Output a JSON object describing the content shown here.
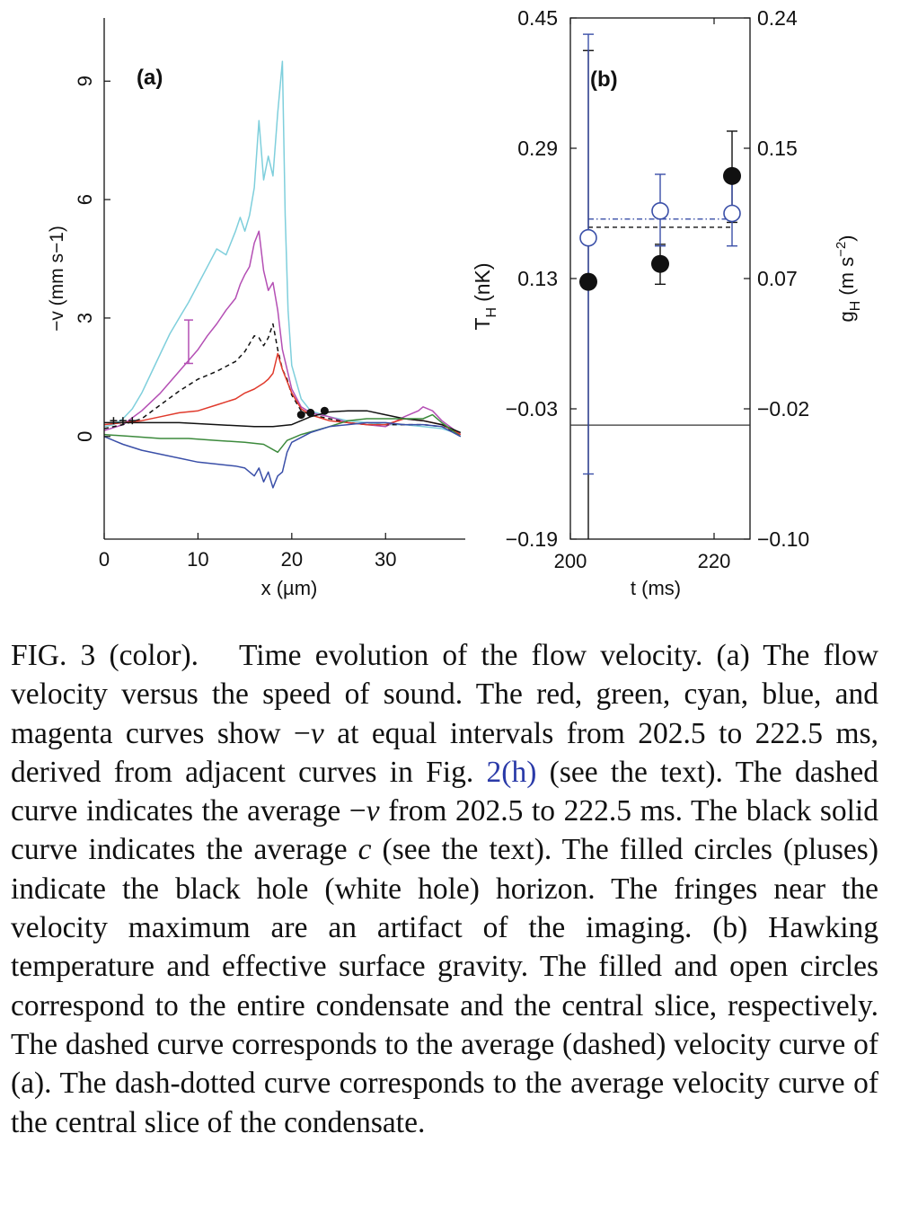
{
  "chart_data": [
    {
      "panel": "(a)",
      "type": "line",
      "xlabel": "x (µm)",
      "ylabel": "−v (mm s−1)",
      "xlim": [
        0,
        38.5
      ],
      "ylim": [
        -2.6,
        10.6
      ],
      "xticks": [
        "0",
        "10",
        "20",
        "30"
      ],
      "yticks": [
        "0",
        "3",
        "6",
        "9"
      ],
      "series": [
        {
          "name": "cyan",
          "color": "#7fcfdc",
          "points": [
            [
              0,
              0.25
            ],
            [
              1,
              0.3
            ],
            [
              2,
              0.45
            ],
            [
              3,
              0.7
            ],
            [
              4,
              1.1
            ],
            [
              5,
              1.6
            ],
            [
              6,
              2.1
            ],
            [
              7,
              2.6
            ],
            [
              8,
              3.0
            ],
            [
              9,
              3.4
            ],
            [
              10,
              3.85
            ],
            [
              11,
              4.3
            ],
            [
              12,
              4.75
            ],
            [
              13,
              4.6
            ],
            [
              14,
              5.2
            ],
            [
              14.5,
              5.55
            ],
            [
              15,
              5.2
            ],
            [
              15.5,
              5.6
            ],
            [
              16,
              6.3
            ],
            [
              16.5,
              8.0
            ],
            [
              17,
              6.5
            ],
            [
              17.5,
              7.1
            ],
            [
              18,
              6.6
            ],
            [
              18.5,
              8.2
            ],
            [
              19,
              9.5
            ],
            [
              19.3,
              5.6
            ],
            [
              19.6,
              3.2
            ],
            [
              20,
              1.8
            ],
            [
              21,
              0.95
            ],
            [
              22,
              0.65
            ],
            [
              24,
              0.5
            ],
            [
              26,
              0.4
            ],
            [
              28,
              0.35
            ],
            [
              30,
              0.3
            ],
            [
              32,
              0.3
            ],
            [
              34,
              0.25
            ],
            [
              36,
              0.2
            ],
            [
              38,
              0.05
            ]
          ]
        },
        {
          "name": "magenta",
          "color": "#b44fb4",
          "points": [
            [
              0,
              0.15
            ],
            [
              2,
              0.3
            ],
            [
              4,
              0.65
            ],
            [
              6,
              1.1
            ],
            [
              8,
              1.65
            ],
            [
              10,
              2.2
            ],
            [
              11,
              2.55
            ],
            [
              12,
              2.85
            ],
            [
              13,
              3.2
            ],
            [
              14,
              3.5
            ],
            [
              14.5,
              3.85
            ],
            [
              15,
              4.1
            ],
            [
              15.5,
              4.3
            ],
            [
              16,
              4.9
            ],
            [
              16.5,
              5.2
            ],
            [
              17,
              4.2
            ],
            [
              17.5,
              3.7
            ],
            [
              18,
              3.9
            ],
            [
              18.5,
              3.2
            ],
            [
              19,
              2.2
            ],
            [
              20,
              1.2
            ],
            [
              21,
              0.75
            ],
            [
              22,
              0.6
            ],
            [
              24,
              0.5
            ],
            [
              26,
              0.35
            ],
            [
              28,
              0.3
            ],
            [
              30,
              0.25
            ],
            [
              32,
              0.5
            ],
            [
              33.5,
              0.65
            ],
            [
              34,
              0.75
            ],
            [
              35,
              0.65
            ],
            [
              36,
              0.4
            ],
            [
              38,
              0.05
            ]
          ]
        },
        {
          "name": "dashed-average",
          "color": "#111111",
          "dashed": true,
          "points": [
            [
              0,
              0.2
            ],
            [
              2,
              0.3
            ],
            [
              4,
              0.45
            ],
            [
              6,
              0.8
            ],
            [
              8,
              1.15
            ],
            [
              10,
              1.45
            ],
            [
              12,
              1.65
            ],
            [
              14,
              1.9
            ],
            [
              15,
              2.15
            ],
            [
              16,
              2.55
            ],
            [
              16.5,
              2.5
            ],
            [
              17,
              2.3
            ],
            [
              17.5,
              2.5
            ],
            [
              18,
              2.85
            ],
            [
              18.5,
              2.2
            ],
            [
              19,
              1.7
            ],
            [
              19.5,
              1.45
            ],
            [
              20,
              1.05
            ],
            [
              21,
              0.65
            ],
            [
              22,
              0.55
            ],
            [
              24,
              0.45
            ],
            [
              26,
              0.35
            ],
            [
              28,
              0.3
            ],
            [
              30,
              0.3
            ],
            [
              32,
              0.3
            ],
            [
              34,
              0.3
            ],
            [
              36,
              0.25
            ],
            [
              38,
              0.05
            ]
          ]
        },
        {
          "name": "red",
          "color": "#e03a2c",
          "points": [
            [
              0,
              0.3
            ],
            [
              2,
              0.35
            ],
            [
              4,
              0.4
            ],
            [
              6,
              0.5
            ],
            [
              8,
              0.6
            ],
            [
              10,
              0.65
            ],
            [
              12,
              0.8
            ],
            [
              14,
              0.95
            ],
            [
              15,
              1.1
            ],
            [
              16,
              1.2
            ],
            [
              17,
              1.35
            ],
            [
              17.5,
              1.45
            ],
            [
              18,
              1.6
            ],
            [
              18.5,
              2.1
            ],
            [
              19,
              1.7
            ],
            [
              19.5,
              1.4
            ],
            [
              20,
              1.1
            ],
            [
              21,
              0.7
            ],
            [
              22,
              0.55
            ],
            [
              24,
              0.4
            ],
            [
              26,
              0.35
            ],
            [
              28,
              0.3
            ],
            [
              30,
              0.3
            ],
            [
              32,
              0.45
            ],
            [
              34,
              0.4
            ],
            [
              36,
              0.3
            ],
            [
              38,
              0.05
            ]
          ]
        },
        {
          "name": "black-solid-average-c",
          "color": "#111111",
          "points": [
            [
              0,
              0.35
            ],
            [
              4,
              0.35
            ],
            [
              8,
              0.35
            ],
            [
              12,
              0.3
            ],
            [
              16,
              0.25
            ],
            [
              18,
              0.25
            ],
            [
              20,
              0.3
            ],
            [
              22,
              0.5
            ],
            [
              24,
              0.62
            ],
            [
              26,
              0.65
            ],
            [
              28,
              0.65
            ],
            [
              30,
              0.55
            ],
            [
              32,
              0.45
            ],
            [
              34,
              0.4
            ],
            [
              36,
              0.3
            ],
            [
              38,
              0.1
            ]
          ]
        },
        {
          "name": "green",
          "color": "#3c8a3c",
          "points": [
            [
              0,
              0.05
            ],
            [
              3,
              0.0
            ],
            [
              6,
              -0.05
            ],
            [
              9,
              -0.05
            ],
            [
              12,
              -0.1
            ],
            [
              15,
              -0.15
            ],
            [
              17,
              -0.2
            ],
            [
              18.5,
              -0.4
            ],
            [
              19.5,
              -0.1
            ],
            [
              21,
              0.05
            ],
            [
              24,
              0.25
            ],
            [
              26,
              0.4
            ],
            [
              28,
              0.45
            ],
            [
              30,
              0.45
            ],
            [
              32,
              0.45
            ],
            [
              34,
              0.45
            ],
            [
              35,
              0.55
            ],
            [
              36,
              0.35
            ],
            [
              38,
              0.0
            ]
          ]
        },
        {
          "name": "blue",
          "color": "#3a4fa8",
          "points": [
            [
              0,
              0.0
            ],
            [
              2,
              -0.2
            ],
            [
              4,
              -0.35
            ],
            [
              6,
              -0.45
            ],
            [
              8,
              -0.55
            ],
            [
              10,
              -0.65
            ],
            [
              12,
              -0.7
            ],
            [
              14,
              -0.75
            ],
            [
              15,
              -0.8
            ],
            [
              16,
              -1.0
            ],
            [
              16.5,
              -0.8
            ],
            [
              17,
              -1.15
            ],
            [
              17.5,
              -0.9
            ],
            [
              18,
              -1.3
            ],
            [
              18.5,
              -1.0
            ],
            [
              19,
              -0.9
            ],
            [
              19.5,
              -0.4
            ],
            [
              20,
              -0.15
            ],
            [
              22,
              0.1
            ],
            [
              24,
              0.25
            ],
            [
              26,
              0.3
            ],
            [
              28,
              0.35
            ],
            [
              30,
              0.35
            ],
            [
              32,
              0.3
            ],
            [
              34,
              0.3
            ],
            [
              36,
              0.25
            ],
            [
              38,
              0.0
            ]
          ]
        }
      ],
      "errorbar": {
        "x": 9,
        "y": 2.35,
        "low": 1.85,
        "high": 2.95,
        "color": "#b44fb4"
      },
      "filled_circles": [
        [
          21,
          0.55
        ],
        [
          22,
          0.6
        ],
        [
          23.5,
          0.65
        ]
      ],
      "plus_markers": [
        [
          1,
          0.4
        ],
        [
          2,
          0.4
        ],
        [
          3,
          0.4
        ]
      ]
    },
    {
      "panel": "(b)",
      "type": "scatter",
      "xlabel": "t (ms)",
      "ylabel_left": "T",
      "ylabel_left_sub": "H",
      "ylabel_left_unit": "(nK)",
      "ylabel_right": "g",
      "ylabel_right_sub": "H",
      "ylabel_right_unit": "(m s",
      "ylabel_right_exp": "−2",
      "ylabel_right_close": ")",
      "xlim": [
        200,
        225
      ],
      "ylim": [
        -0.19,
        0.45
      ],
      "y2lim": [
        -0.1,
        0.24
      ],
      "xticks": [
        "200",
        "220"
      ],
      "yticks_left": [
        "0.45",
        "0.29",
        "0.13",
        "−0.03",
        "−0.19"
      ],
      "yticks_right": [
        "0.24",
        "0.15",
        "0.07",
        "−0.02",
        "−0.10"
      ],
      "zero_line": -0.05,
      "filled": {
        "name": "entire condensate",
        "points": [
          {
            "t": 202.5,
            "T": 0.126,
            "low": -0.21,
            "high": 0.41
          },
          {
            "t": 212.5,
            "T": 0.148,
            "low": 0.123,
            "high": 0.172
          },
          {
            "t": 222.5,
            "T": 0.256,
            "low": 0.199,
            "high": 0.311
          }
        ]
      },
      "open": {
        "name": "central slice",
        "color": "#3a4fa8",
        "points": [
          {
            "t": 202.5,
            "T": 0.18,
            "low": -0.11,
            "high": 0.43
          },
          {
            "t": 212.5,
            "T": 0.213,
            "low": 0.17,
            "high": 0.258
          },
          {
            "t": 222.5,
            "T": 0.21,
            "low": 0.17,
            "high": 0.248
          }
        ]
      },
      "dashed_average": 0.193,
      "dashdotted_average": 0.203
    }
  ],
  "labels": {
    "panel_a": "(a)",
    "panel_b": "(b)"
  },
  "caption": {
    "label": "FIG. 3 (color).",
    "text_1": "Time evolution of the flow velocity. (a) The flow velocity versus the speed of sound. The red, green, cyan, blue, and magenta curves show −",
    "var_v": "v",
    "text_2": " at equal intervals from 202.5 to 222.5 ms, derived from adjacent curves in Fig. ",
    "fig_ref": "2(h)",
    "text_3": " (see the text). The dashed curve indicates the average −",
    "text_4": " from 202.5 to 222.5 ms. The black solid curve indicates the average ",
    "var_c": "c",
    "text_5": " (see the text). The filled circles (pluses) indicate the black hole (white hole) horizon. The fringes near the velocity maximum are an artifact of the imaging. (b) Hawking temperature and effective surface gravity. The filled and open circles correspond to the entire condensate and the central slice, respectively. The dashed curve corresponds to the average (dashed) velocity curve of (a). The dash-dotted curve corresponds to the average velocity curve of the central slice of the condensate."
  }
}
